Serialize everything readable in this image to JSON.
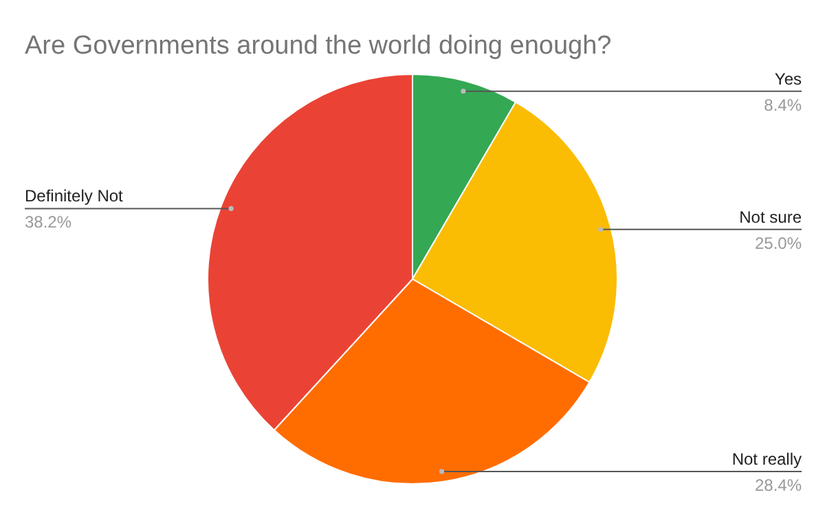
{
  "chart_data": {
    "type": "pie",
    "title": "Are Governments around the world doing enough?",
    "categories": [
      "Yes",
      "Not sure",
      "Not really",
      "Definitely Not"
    ],
    "values": [
      8.4,
      25.0,
      28.4,
      38.2
    ],
    "value_labels": [
      "8.4%",
      "25.0%",
      "28.4%",
      "38.2%"
    ],
    "colors": [
      "#34a853",
      "#fbbc04",
      "#ff6d01",
      "#ea4335"
    ]
  }
}
